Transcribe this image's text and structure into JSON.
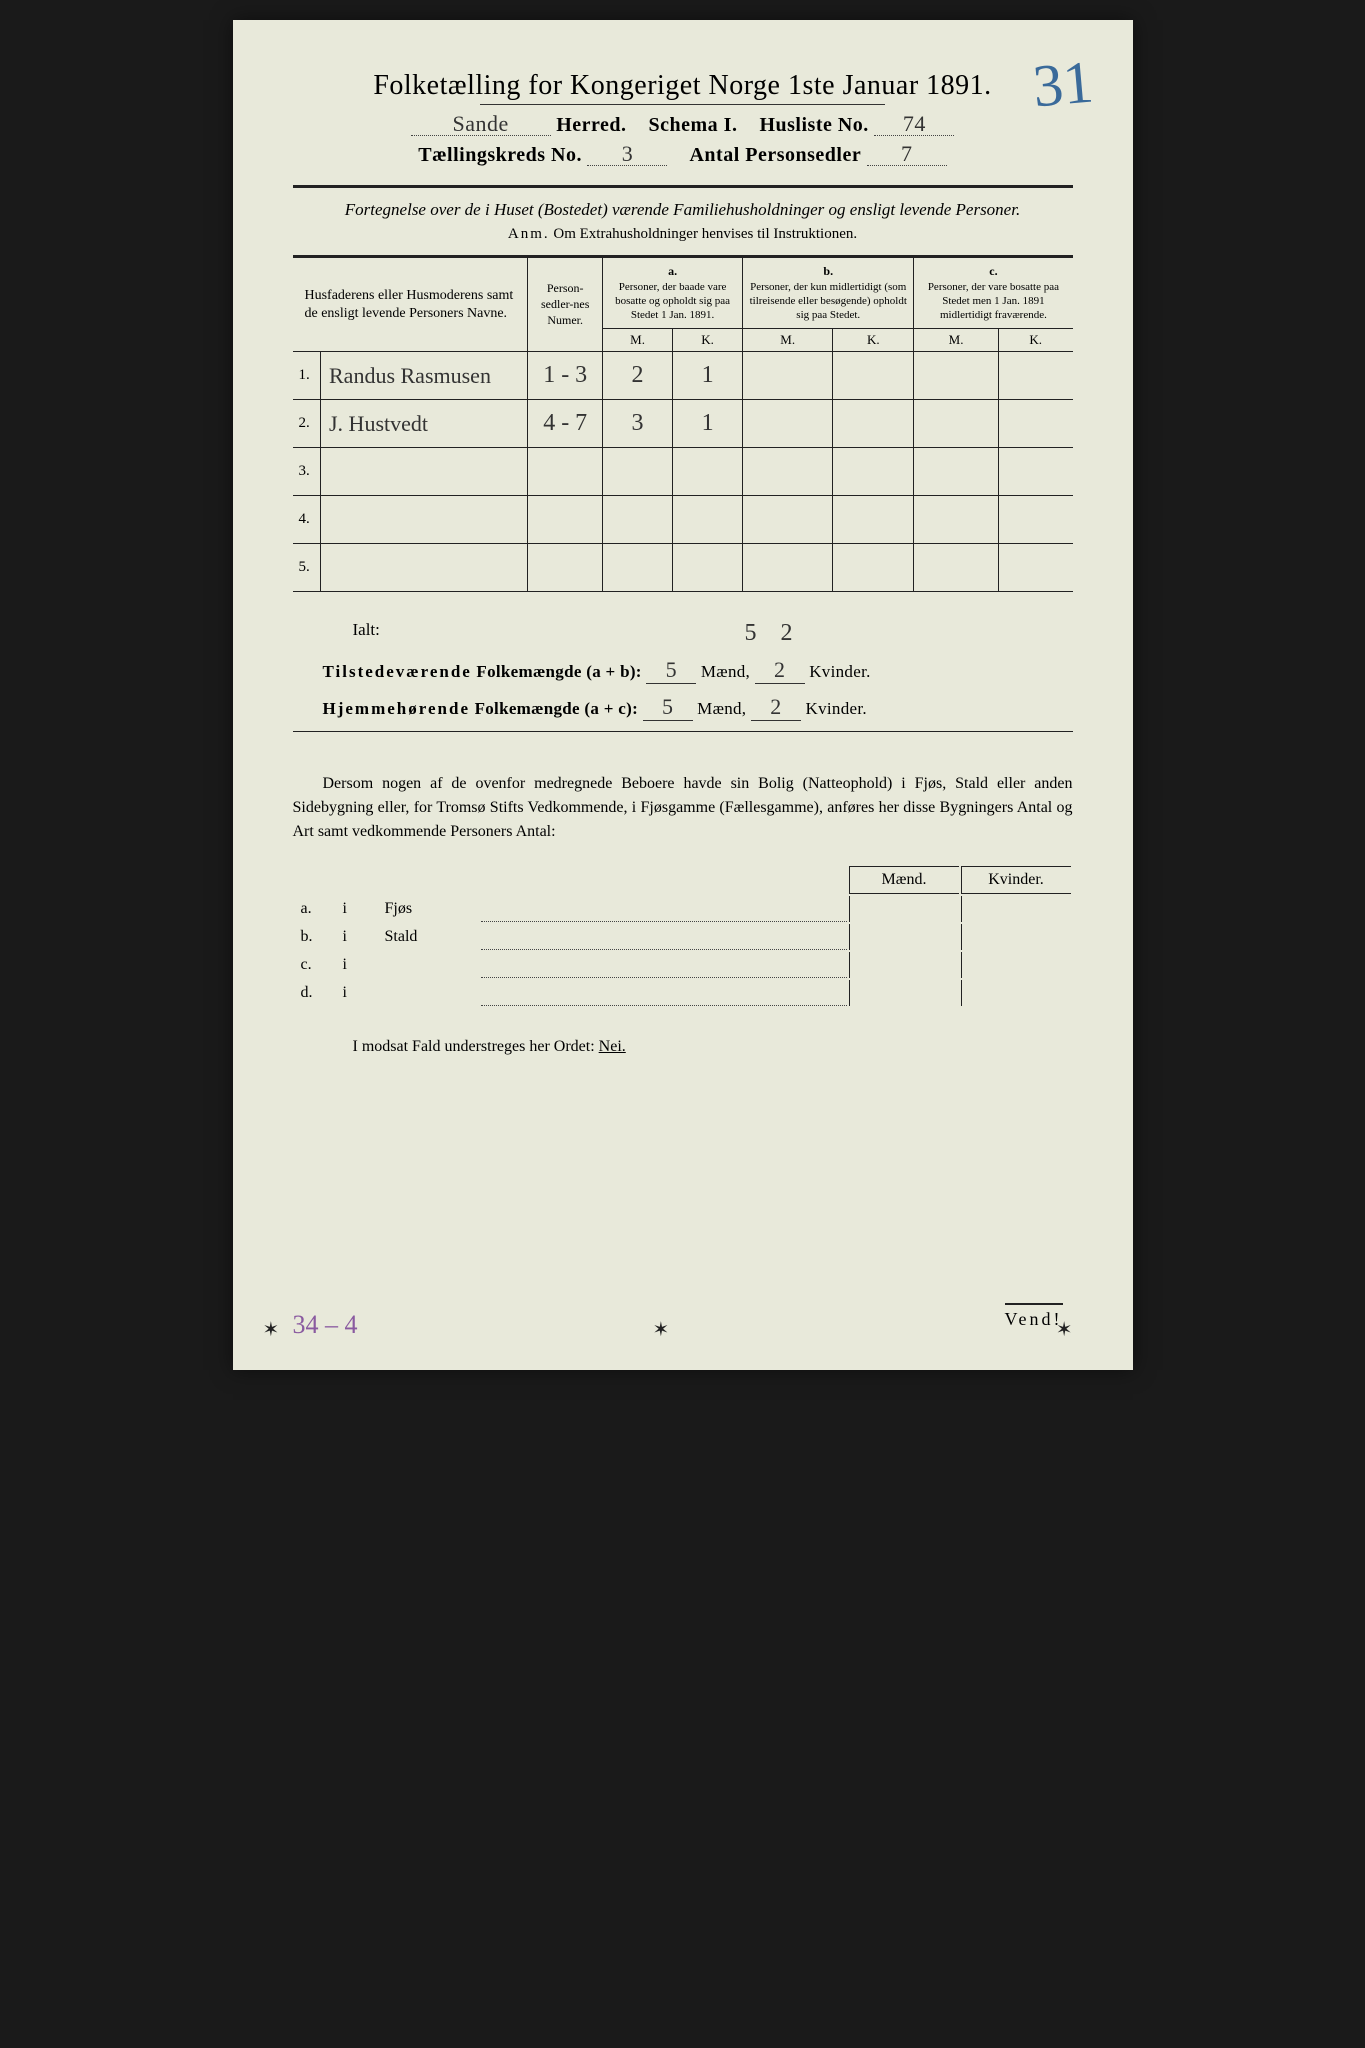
{
  "title": "Folketælling for Kongeriget Norge 1ste Januar 1891.",
  "corner_number": "31",
  "header": {
    "herred_value": "Sande",
    "herred_label": "Herred.",
    "schema_label": "Schema I.",
    "husliste_label": "Husliste No.",
    "husliste_value": "74",
    "kreds_label": "Tællingskreds No.",
    "kreds_value": "3",
    "antal_label": "Antal Personsedler",
    "antal_value": "7"
  },
  "subtitle": "Fortegnelse over de i Huset (Bostedet) værende Familiehusholdninger og ensligt levende Personer.",
  "anm_label": "Anm.",
  "anm_text": "Om Extrahusholdninger henvises til Instruktionen.",
  "table": {
    "col_names": "Husfaderens eller Husmoderens samt de ensligt levende Personers Navne.",
    "col_numer": "Person-sedler-nes Numer.",
    "col_a_head": "a.",
    "col_a": "Personer, der baade vare bosatte og opholdt sig paa Stedet 1 Jan. 1891.",
    "col_b_head": "b.",
    "col_b": "Personer, der kun midlertidigt (som tilreisende eller besøgende) opholdt sig paa Stedet.",
    "col_c_head": "c.",
    "col_c": "Personer, der vare bosatte paa Stedet men 1 Jan. 1891 midlertidigt fraværende.",
    "mk_m": "M.",
    "mk_k": "K.",
    "rows": [
      {
        "n": "1.",
        "name": "Randus Rasmusen",
        "numer": "1 - 3",
        "am": "2",
        "ak": "1",
        "bm": "",
        "bk": "",
        "cm": "",
        "ck": ""
      },
      {
        "n": "2.",
        "name": "J. Hustvedt",
        "numer": "4 - 7",
        "am": "3",
        "ak": "1",
        "bm": "",
        "bk": "",
        "cm": "",
        "ck": ""
      },
      {
        "n": "3.",
        "name": "",
        "numer": "",
        "am": "",
        "ak": "",
        "bm": "",
        "bk": "",
        "cm": "",
        "ck": ""
      },
      {
        "n": "4.",
        "name": "",
        "numer": "",
        "am": "",
        "ak": "",
        "bm": "",
        "bk": "",
        "cm": "",
        "ck": ""
      },
      {
        "n": "5.",
        "name": "",
        "numer": "",
        "am": "",
        "ak": "",
        "bm": "",
        "bk": "",
        "cm": "",
        "ck": ""
      }
    ]
  },
  "ialt_label": "Ialt:",
  "ialt_m": "5",
  "ialt_k": "2",
  "summary": {
    "line1_a": "Tilstedeværende",
    "line1_b": "Folkemængde (a + b):",
    "line1_m": "5",
    "line1_k": "2",
    "line2_a": "Hjemmehørende",
    "line2_b": "Folkemængde (a + c):",
    "line2_m": "5",
    "line2_k": "2",
    "maend": "Mænd,",
    "kvinder": "Kvinder."
  },
  "para": "Dersom nogen af de ovenfor medregnede Beboere havde sin Bolig (Natteophold) i Fjøs, Stald eller anden Sidebygning eller, for Tromsø Stifts Vedkommende, i Fjøsgamme (Fællesgamme), anføres her disse Bygningers Antal og Art samt vedkommende Personers Antal:",
  "buildings": {
    "maend": "Mænd.",
    "kvinder": "Kvinder.",
    "rows": [
      {
        "l": "a.",
        "i": "i",
        "name": "Fjøs"
      },
      {
        "l": "b.",
        "i": "i",
        "name": "Stald"
      },
      {
        "l": "c.",
        "i": "i",
        "name": ""
      },
      {
        "l": "d.",
        "i": "i",
        "name": ""
      }
    ]
  },
  "nei_line_a": "I modsat Fald understreges her Ordet:",
  "nei_line_b": "Nei.",
  "bottom_note": "34 – 4",
  "vend": "Vend!"
}
